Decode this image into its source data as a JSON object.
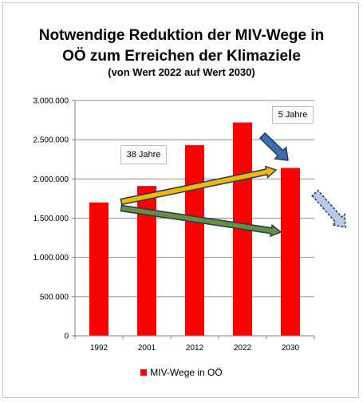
{
  "chart_data": {
    "type": "bar",
    "title": "Notwendige Reduktion der MIV-Wege in OÖ zum Erreichen der Klimaziele",
    "title_line1": "Notwendige Reduktion der MIV-Wege in",
    "title_line2": "OÖ zum Erreichen der Klimaziele",
    "subtitle": "(von Wert 2022 auf Wert 2030)",
    "categories": [
      "1992",
      "2001",
      "2012",
      "2022",
      "2030"
    ],
    "series": [
      {
        "name": "MIV-Wege in OÖ",
        "values": [
          1700000,
          1910000,
          2430000,
          2720000,
          2140000
        ],
        "color": "#ff0000"
      }
    ],
    "ylim": [
      0,
      3000000
    ],
    "yticks": [
      {
        "value": 0,
        "label": "0"
      },
      {
        "value": 500000,
        "label": "500.000"
      },
      {
        "value": 1000000,
        "label": "1.000.000"
      },
      {
        "value": 1500000,
        "label": "1.500.000"
      },
      {
        "value": 2000000,
        "label": "2.000.000"
      },
      {
        "value": 2500000,
        "label": "2.500.000"
      },
      {
        "value": 3000000,
        "label": "3.000.000"
      }
    ],
    "grid": true,
    "legend_position": "bottom",
    "annotations": [
      {
        "text": "38 Jahre"
      },
      {
        "text": "5 Jahre"
      }
    ],
    "arrow_colors": {
      "yellow": "#f5b800",
      "green": "#6b8e3a",
      "blue": "#3d6fb0",
      "light_blue": "#b7c9e6",
      "outline": "#1f3a5f"
    }
  }
}
